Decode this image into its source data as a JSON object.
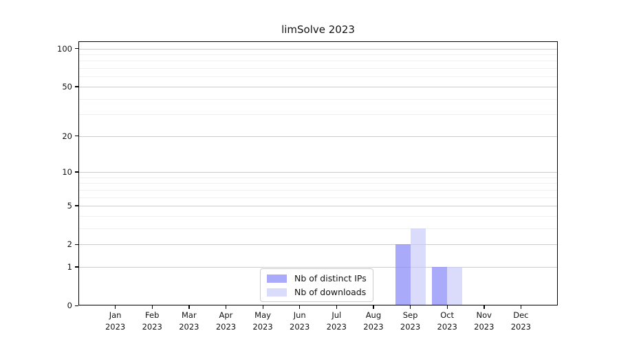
{
  "title": "limSolve 2023",
  "chart_data": {
    "type": "bar",
    "title": "limSolve 2023",
    "categories": [
      "Jan 2023",
      "Feb 2023",
      "Mar 2023",
      "Apr 2023",
      "May 2023",
      "Jun 2023",
      "Jul 2023",
      "Aug 2023",
      "Sep 2023",
      "Oct 2023",
      "Nov 2023",
      "Dec 2023"
    ],
    "series": [
      {
        "name": "Nb of distinct IPs",
        "color": "rgba(137,137,248,0.72)",
        "values": [
          0,
          0,
          0,
          0,
          0,
          0,
          0,
          0,
          2,
          1,
          0,
          0
        ]
      },
      {
        "name": "Nb of downloads",
        "color": "rgba(200,200,249,0.65)",
        "values": [
          0,
          0,
          0,
          0,
          0,
          0,
          0,
          0,
          3,
          1,
          0,
          0
        ]
      }
    ],
    "xlabel": "",
    "ylabel": "",
    "y_scale": "log1p",
    "y_ticks": [
      0,
      1,
      2,
      5,
      10,
      20,
      50,
      100
    ],
    "ylim": [
      0,
      114
    ],
    "grid": "horizontal",
    "legend_position": "inside-bottom-center"
  },
  "colors": {
    "background": "#ffffff",
    "axis": "#000000",
    "grid_major": "#cccccc",
    "grid_minor": "#f0f0f0",
    "text": "#111111",
    "legend_border": "#cbcbcb"
  }
}
